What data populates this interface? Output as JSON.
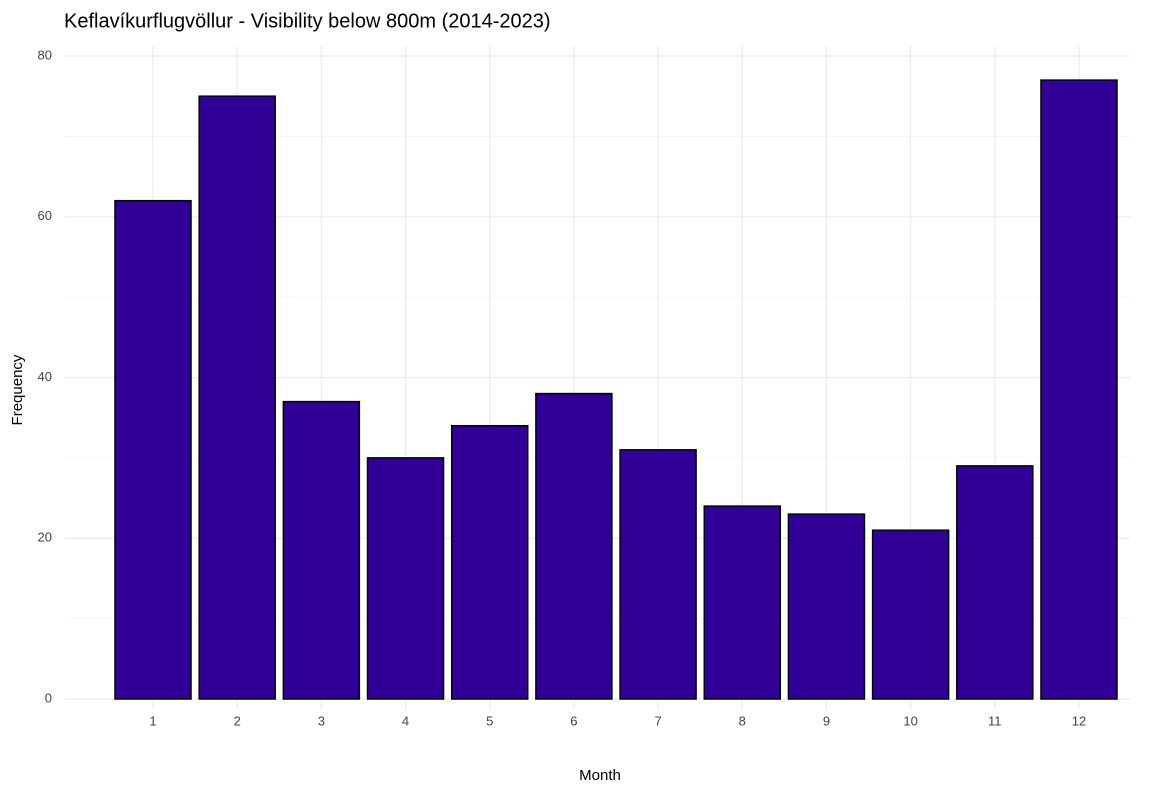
{
  "chart_data": {
    "type": "bar",
    "title": "Keflavíkurflugvöllur - Visibility below 800m (2014-2023)",
    "x_label": "Month",
    "y_label": "Frequency",
    "categories": [
      "1",
      "2",
      "3",
      "4",
      "5",
      "6",
      "7",
      "8",
      "9",
      "10",
      "11",
      "12"
    ],
    "values": [
      62,
      75,
      37,
      30,
      34,
      38,
      31,
      24,
      23,
      21,
      29,
      77
    ],
    "color": "#310096",
    "edge_color": "#000000",
    "ylim": [
      0,
      80
    ],
    "yticks": [
      0,
      20,
      40,
      60,
      80
    ],
    "grid": true
  }
}
